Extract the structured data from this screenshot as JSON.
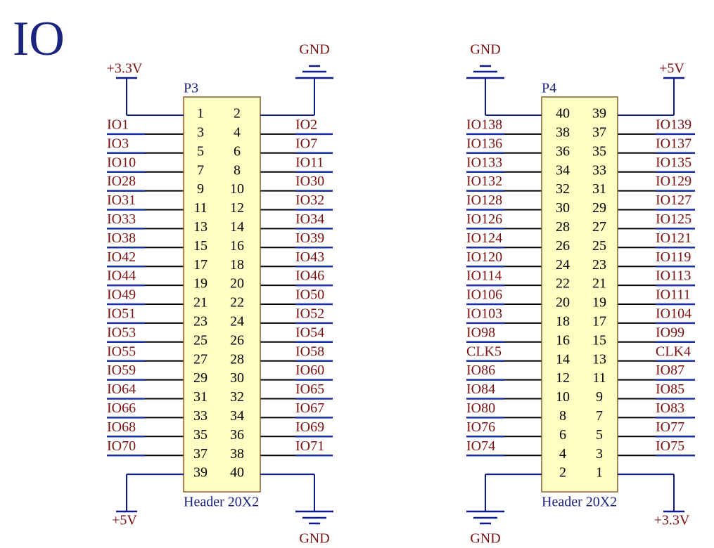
{
  "title": "IO",
  "headers": [
    {
      "designator": "P3",
      "comment": "Header 20X2",
      "top_left_power": "+3.3V",
      "top_right_power": "GND",
      "bottom_left_power": "+5V",
      "bottom_right_power": "GND",
      "pins": [
        [
          "1",
          "2"
        ],
        [
          "3",
          "4"
        ],
        [
          "5",
          "6"
        ],
        [
          "7",
          "8"
        ],
        [
          "9",
          "10"
        ],
        [
          "11",
          "12"
        ],
        [
          "13",
          "14"
        ],
        [
          "15",
          "16"
        ],
        [
          "17",
          "18"
        ],
        [
          "19",
          "20"
        ],
        [
          "21",
          "22"
        ],
        [
          "23",
          "24"
        ],
        [
          "25",
          "26"
        ],
        [
          "27",
          "28"
        ],
        [
          "29",
          "30"
        ],
        [
          "31",
          "32"
        ],
        [
          "33",
          "34"
        ],
        [
          "35",
          "36"
        ],
        [
          "37",
          "38"
        ],
        [
          "39",
          "40"
        ]
      ],
      "left_nets": [
        "IO1",
        "IO3",
        "IO10",
        "IO28",
        "IO31",
        "IO33",
        "IO38",
        "IO42",
        "IO44",
        "IO49",
        "IO51",
        "IO53",
        "IO55",
        "IO59",
        "IO64",
        "IO66",
        "IO68",
        "IO70"
      ],
      "right_nets": [
        "IO2",
        "IO7",
        "IO11",
        "IO30",
        "IO32",
        "IO34",
        "IO39",
        "IO43",
        "IO46",
        "IO50",
        "IO52",
        "IO54",
        "IO58",
        "IO60",
        "IO65",
        "IO67",
        "IO69",
        "IO71"
      ]
    },
    {
      "designator": "P4",
      "comment": "Header 20X2",
      "top_left_power": "GND",
      "top_right_power": "+5V",
      "bottom_left_power": "GND",
      "bottom_right_power": "+3.3V",
      "pins": [
        [
          "40",
          "39"
        ],
        [
          "38",
          "37"
        ],
        [
          "36",
          "35"
        ],
        [
          "34",
          "33"
        ],
        [
          "32",
          "31"
        ],
        [
          "30",
          "29"
        ],
        [
          "28",
          "27"
        ],
        [
          "26",
          "25"
        ],
        [
          "24",
          "23"
        ],
        [
          "22",
          "21"
        ],
        [
          "20",
          "19"
        ],
        [
          "18",
          "17"
        ],
        [
          "16",
          "15"
        ],
        [
          "14",
          "13"
        ],
        [
          "12",
          "11"
        ],
        [
          "10",
          "9"
        ],
        [
          "8",
          "7"
        ],
        [
          "6",
          "5"
        ],
        [
          "4",
          "3"
        ],
        [
          "2",
          "1"
        ]
      ],
      "left_nets": [
        "IO138",
        "IO136",
        "IO133",
        "IO132",
        "IO128",
        "IO126",
        "IO124",
        "IO120",
        "IO114",
        "IO106",
        "IO103",
        "IO98",
        "CLK5",
        "IO86",
        "IO84",
        "IO80",
        "IO76",
        "IO74"
      ],
      "right_nets": [
        "IO139",
        "IO137",
        "IO135",
        "IO129",
        "IO127",
        "IO125",
        "IO121",
        "IO119",
        "IO113",
        "IO111",
        "IO104",
        "IO99",
        "CLK4",
        "IO87",
        "IO85",
        "IO83",
        "IO77",
        "IO75"
      ]
    }
  ]
}
